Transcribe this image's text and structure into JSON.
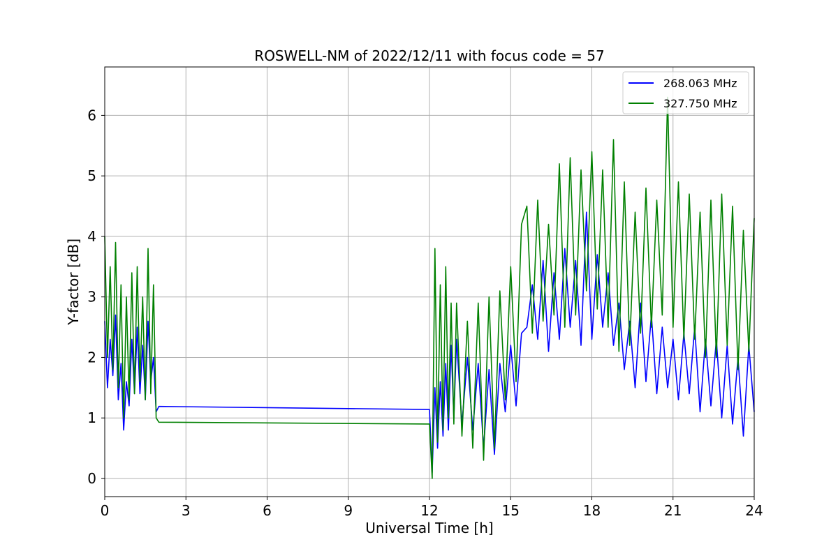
{
  "chart_data": {
    "type": "line",
    "title": "ROSWELL-NM of 2022/12/11 with focus code = 57",
    "xlabel": "Universal Time [h]",
    "ylabel": "Y-factor [dB]",
    "xlim": [
      0,
      24
    ],
    "ylim": [
      -0.3,
      6.8
    ],
    "xticks": [
      0,
      3,
      6,
      9,
      12,
      15,
      18,
      21,
      24
    ],
    "yticks": [
      0,
      1,
      2,
      3,
      4,
      5,
      6
    ],
    "grid": true,
    "legend_position": "top-right",
    "series": [
      {
        "name": "268.063 MHz",
        "color": "#0000ff",
        "x": [
          0.0,
          0.1,
          0.2,
          0.3,
          0.4,
          0.5,
          0.6,
          0.7,
          0.8,
          0.9,
          1.0,
          1.1,
          1.2,
          1.3,
          1.4,
          1.5,
          1.6,
          1.7,
          1.8,
          1.9,
          2.0,
          12.0,
          12.1,
          12.2,
          12.3,
          12.4,
          12.5,
          12.6,
          12.7,
          12.8,
          12.9,
          13.0,
          13.2,
          13.4,
          13.6,
          13.8,
          14.0,
          14.2,
          14.4,
          14.6,
          14.8,
          15.0,
          15.2,
          15.4,
          15.6,
          15.8,
          16.0,
          16.2,
          16.4,
          16.6,
          16.8,
          17.0,
          17.2,
          17.4,
          17.6,
          17.8,
          18.0,
          18.2,
          18.4,
          18.6,
          18.8,
          19.0,
          19.2,
          19.4,
          19.6,
          19.8,
          20.0,
          20.2,
          20.4,
          20.6,
          20.8,
          21.0,
          21.2,
          21.4,
          21.6,
          21.8,
          22.0,
          22.2,
          22.4,
          22.6,
          22.8,
          23.0,
          23.2,
          23.4,
          23.6,
          23.8,
          24.0
        ],
        "values": [
          2.6,
          1.5,
          2.3,
          1.7,
          2.7,
          1.3,
          1.9,
          0.8,
          1.6,
          1.2,
          2.3,
          1.4,
          2.5,
          1.4,
          2.2,
          1.3,
          2.6,
          1.6,
          2.0,
          1.1,
          1.19,
          1.14,
          0.1,
          1.5,
          0.5,
          1.6,
          0.7,
          1.9,
          0.8,
          2.2,
          1.0,
          2.3,
          0.9,
          2.0,
          0.8,
          1.9,
          0.5,
          1.8,
          0.4,
          1.9,
          1.1,
          2.2,
          1.2,
          2.4,
          2.5,
          3.2,
          2.3,
          3.6,
          2.1,
          3.4,
          2.3,
          3.8,
          2.5,
          3.6,
          2.2,
          4.4,
          2.3,
          3.7,
          2.5,
          3.4,
          2.2,
          2.9,
          1.8,
          2.6,
          1.5,
          2.9,
          1.6,
          2.7,
          1.4,
          2.5,
          1.5,
          2.3,
          1.3,
          2.4,
          1.4,
          2.5,
          1.1,
          2.3,
          1.2,
          2.3,
          1.0,
          2.2,
          0.9,
          2.0,
          0.7,
          2.2,
          1.1
        ]
      },
      {
        "name": "327.750 MHz",
        "color": "#008000",
        "x": [
          0.0,
          0.1,
          0.2,
          0.3,
          0.4,
          0.5,
          0.6,
          0.7,
          0.8,
          0.9,
          1.0,
          1.1,
          1.2,
          1.3,
          1.4,
          1.5,
          1.6,
          1.7,
          1.8,
          1.9,
          2.0,
          12.0,
          12.1,
          12.2,
          12.3,
          12.4,
          12.5,
          12.6,
          12.7,
          12.8,
          12.9,
          13.0,
          13.2,
          13.4,
          13.6,
          13.8,
          14.0,
          14.2,
          14.4,
          14.6,
          14.8,
          15.0,
          15.2,
          15.4,
          15.6,
          15.8,
          16.0,
          16.2,
          16.4,
          16.6,
          16.8,
          17.0,
          17.2,
          17.4,
          17.6,
          17.8,
          18.0,
          18.2,
          18.4,
          18.6,
          18.8,
          19.0,
          19.2,
          19.4,
          19.6,
          19.8,
          20.0,
          20.2,
          20.4,
          20.6,
          20.8,
          21.0,
          21.2,
          21.4,
          21.6,
          21.8,
          22.0,
          22.2,
          22.4,
          22.6,
          22.8,
          23.0,
          23.2,
          23.4,
          23.6,
          23.8,
          24.0
        ],
        "values": [
          4.0,
          2.0,
          3.5,
          1.8,
          3.9,
          1.5,
          3.2,
          1.0,
          3.0,
          1.3,
          3.4,
          1.4,
          3.5,
          1.6,
          3.0,
          1.3,
          3.8,
          1.4,
          3.2,
          1.0,
          0.93,
          0.9,
          0.0,
          3.8,
          0.6,
          3.2,
          0.8,
          3.5,
          1.0,
          2.9,
          0.9,
          2.9,
          0.7,
          2.6,
          0.5,
          2.9,
          0.3,
          3.0,
          0.5,
          3.1,
          1.3,
          3.5,
          1.6,
          4.2,
          4.5,
          2.4,
          4.6,
          2.6,
          4.2,
          2.7,
          5.2,
          2.5,
          5.3,
          2.7,
          5.1,
          3.1,
          5.4,
          2.8,
          5.1,
          2.5,
          5.6,
          2.1,
          4.9,
          2.2,
          4.4,
          2.4,
          4.8,
          2.5,
          4.6,
          2.7,
          6.3,
          2.5,
          4.9,
          2.3,
          4.7,
          2.3,
          4.4,
          2.0,
          4.6,
          2.0,
          4.7,
          2.2,
          4.5,
          1.8,
          4.1,
          2.1,
          4.3
        ]
      }
    ]
  }
}
